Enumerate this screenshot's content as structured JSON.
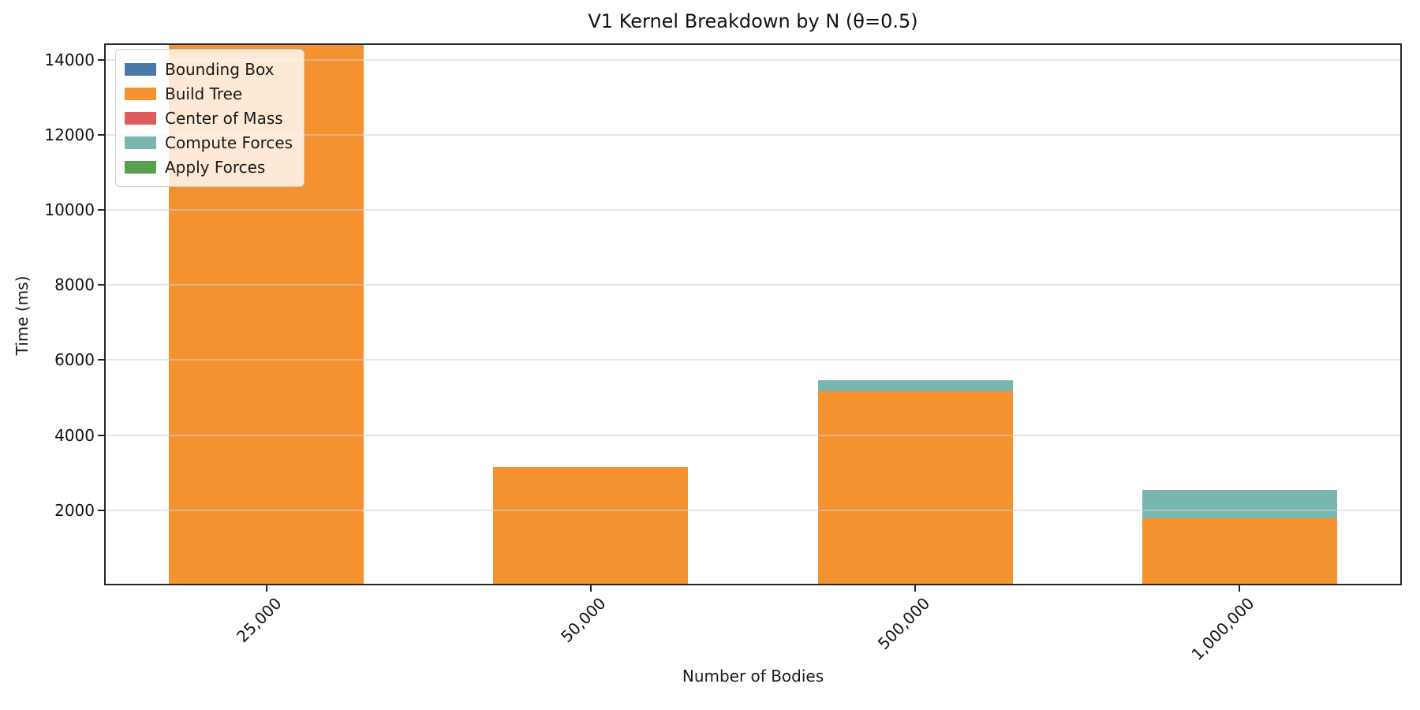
{
  "title": "V1 Kernel Breakdown by N (θ=0.5)",
  "chart_data": {
    "type": "bar",
    "stacked": true,
    "title": "V1 Kernel Breakdown by N (θ=0.5)",
    "xlabel": "Number of Bodies",
    "ylabel": "Time (ms)",
    "categories": [
      "25,000",
      "50,000",
      "500,000",
      "1,000,000"
    ],
    "series": [
      {
        "name": "Bounding Box",
        "color": "#4a79a8",
        "values": [
          0,
          0,
          0,
          0
        ]
      },
      {
        "name": "Build Tree",
        "color": "#f4922f",
        "values": [
          14600,
          3150,
          5170,
          1790
        ]
      },
      {
        "name": "Center of Mass",
        "color": "#dd5c5e",
        "values": [
          0,
          0,
          0,
          0
        ]
      },
      {
        "name": "Compute Forces",
        "color": "#79b6b0",
        "values": [
          0,
          0,
          295,
          755
        ]
      },
      {
        "name": "Apply Forces",
        "color": "#57a14e",
        "values": [
          0,
          0,
          0,
          0
        ]
      }
    ],
    "yticks": [
      2000,
      4000,
      6000,
      8000,
      10000,
      12000,
      14000
    ],
    "ylim": [
      0,
      14433
    ],
    "grid": true,
    "grid_axis": "y",
    "legend_position": "upper left",
    "bar_width_fraction": 0.6,
    "notes": "Bar for N=25,000 exceeds the y-axis range and is clipped at the top of the plot; Bounding Box, Center of Mass and Apply Forces segments are too small to be visible at this scale."
  }
}
